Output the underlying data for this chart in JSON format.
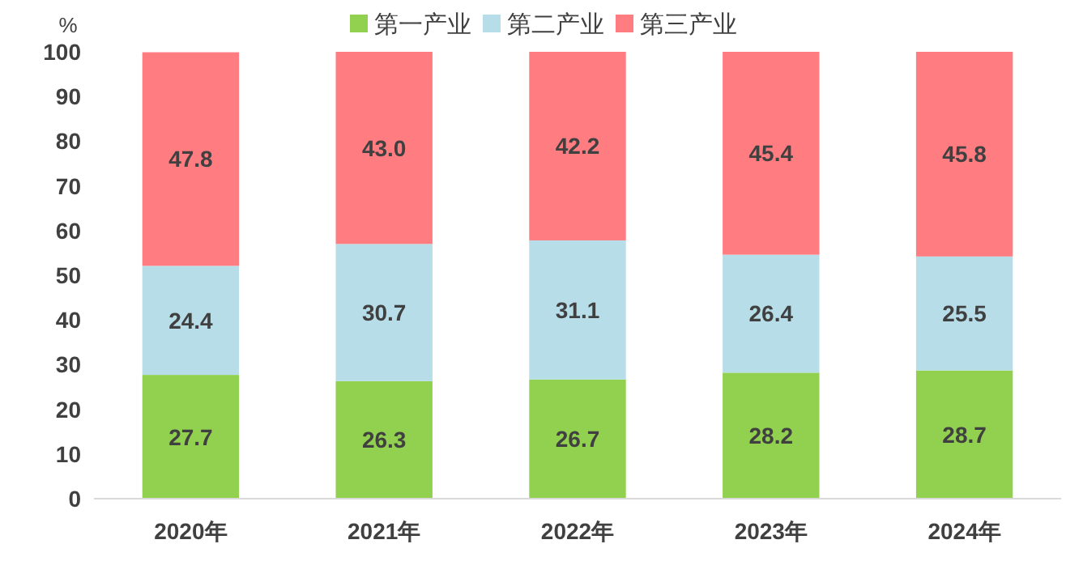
{
  "chart_data": {
    "type": "bar",
    "stacked": true,
    "ylabel": "%",
    "categories": [
      "2020年",
      "2021年",
      "2022年",
      "2023年",
      "2024年"
    ],
    "series": [
      {
        "name": "第一产业",
        "color": "#92d050",
        "values": [
          27.7,
          26.3,
          26.7,
          28.2,
          28.7
        ],
        "value_labels": [
          "27.7",
          "26.3",
          "26.7",
          "28.2",
          "28.7"
        ]
      },
      {
        "name": "第二产业",
        "color": "#b7dde8",
        "values": [
          24.4,
          30.7,
          31.1,
          26.4,
          25.5
        ],
        "value_labels": [
          "24.4",
          "30.7",
          "31.1",
          "26.4",
          "25.5"
        ]
      },
      {
        "name": "第三产业",
        "color": "#ff7c80",
        "values": [
          47.8,
          43.0,
          42.2,
          45.4,
          45.8
        ],
        "value_labels": [
          "47.8",
          "43.0",
          "42.2",
          "45.4",
          "45.8"
        ]
      }
    ],
    "ylim": [
      0,
      100
    ],
    "yticks": [
      0,
      10,
      20,
      30,
      40,
      50,
      60,
      70,
      80,
      90,
      100
    ],
    "legend": "top"
  }
}
